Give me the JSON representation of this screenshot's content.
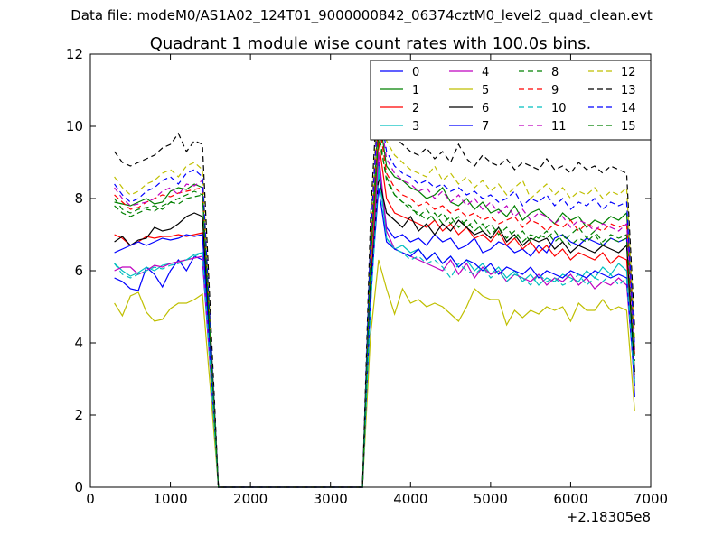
{
  "figure": {
    "suptitle": "Data file: modeM0/AS1A02_124T01_9000000842_06374cztM0_level2_quad_clean.evt"
  },
  "chart_data": {
    "type": "line",
    "title": "Quadrant 1 module wise count rates with 100.0s bins.",
    "xlabel": "",
    "ylabel": "",
    "x_offset_label": "+2.18305e8",
    "xlim": [
      0,
      7000
    ],
    "ylim": [
      0,
      12
    ],
    "xticks": [
      0,
      1000,
      2000,
      3000,
      4000,
      5000,
      6000,
      7000
    ],
    "yticks": [
      0,
      2,
      4,
      6,
      8,
      10,
      12
    ],
    "grid": false,
    "legend": {
      "position": "upper-right",
      "columns": 4
    },
    "x_segment_1": [
      300,
      400,
      500,
      600,
      700,
      800,
      900,
      1000,
      1100,
      1200,
      1300,
      1400,
      1500,
      1600
    ],
    "x_segment_2": [
      3400,
      3500,
      3600,
      3700,
      3800,
      3900,
      4000,
      4100,
      4200,
      4300,
      4400,
      4500,
      4600,
      4700,
      4800,
      4900,
      5000,
      5100,
      5200,
      5300,
      5400,
      5500,
      5600,
      5700,
      5800,
      5900,
      6000,
      6100,
      6200,
      6300,
      6400,
      6500,
      6600,
      6700,
      6800
    ],
    "gap_x": [
      1600,
      3400
    ],
    "gap_value": 0,
    "series": [
      {
        "name": "0",
        "color": "#0000ff",
        "dash": "solid",
        "seg1": [
          5.8,
          5.7,
          5.5,
          5.45,
          6.1,
          5.9,
          5.55,
          6.0,
          6.3,
          6.0,
          6.4,
          6.3,
          3.2,
          0
        ],
        "seg2": [
          0,
          5.0,
          9.0,
          7.2,
          6.9,
          7.0,
          6.8,
          6.9,
          6.7,
          7.0,
          6.8,
          6.9,
          6.6,
          6.7,
          6.9,
          6.5,
          6.6,
          6.8,
          6.7,
          6.5,
          6.6,
          6.4,
          6.7,
          6.5,
          6.9,
          7.0,
          6.8,
          6.7,
          6.9,
          6.8,
          6.7,
          6.9,
          6.8,
          6.9,
          2.5
        ]
      },
      {
        "name": "1",
        "color": "#008000",
        "dash": "solid",
        "seg1": [
          7.9,
          7.85,
          7.8,
          7.9,
          8.0,
          7.85,
          7.9,
          8.2,
          8.3,
          8.25,
          8.4,
          8.3,
          4.2,
          0
        ],
        "seg2": [
          0,
          6.5,
          10.4,
          8.9,
          8.6,
          8.5,
          8.3,
          8.2,
          8.0,
          8.1,
          8.3,
          7.9,
          7.8,
          8.0,
          7.7,
          7.9,
          7.6,
          7.7,
          7.5,
          7.8,
          7.4,
          7.6,
          7.7,
          7.5,
          7.3,
          7.6,
          7.4,
          7.5,
          7.2,
          7.4,
          7.3,
          7.5,
          7.4,
          7.6,
          3.8
        ]
      },
      {
        "name": "2",
        "color": "#ff0000",
        "dash": "solid",
        "seg1": [
          7.0,
          6.9,
          6.7,
          6.8,
          6.95,
          6.9,
          6.95,
          6.95,
          7.0,
          6.95,
          7.0,
          7.05,
          3.5,
          0
        ],
        "seg2": [
          0,
          5.6,
          9.6,
          8.0,
          7.6,
          7.5,
          7.4,
          7.3,
          7.2,
          7.4,
          7.1,
          7.3,
          7.0,
          7.2,
          6.9,
          7.0,
          6.8,
          7.1,
          6.7,
          6.9,
          6.6,
          6.8,
          6.5,
          6.7,
          6.4,
          6.6,
          6.3,
          6.5,
          6.4,
          6.3,
          6.5,
          6.2,
          6.4,
          6.3,
          3.1
        ]
      },
      {
        "name": "3",
        "color": "#00bfbf",
        "dash": "solid",
        "seg1": [
          6.2,
          6.0,
          5.85,
          5.95,
          6.1,
          6.0,
          6.15,
          6.2,
          6.25,
          6.3,
          6.45,
          6.5,
          3.3,
          0
        ],
        "seg2": [
          0,
          5.1,
          8.9,
          6.9,
          6.6,
          6.7,
          6.5,
          6.6,
          6.3,
          6.5,
          6.2,
          6.4,
          6.1,
          6.3,
          6.0,
          6.2,
          5.9,
          6.1,
          5.8,
          6.0,
          5.7,
          5.9,
          5.6,
          5.8,
          5.7,
          5.9,
          5.8,
          5.7,
          6.0,
          5.8,
          6.1,
          5.9,
          6.2,
          6.0,
          3.0
        ]
      },
      {
        "name": "4",
        "color": "#bf00bf",
        "dash": "solid",
        "seg1": [
          6.0,
          6.1,
          6.1,
          5.9,
          6.0,
          6.15,
          6.1,
          6.2,
          6.25,
          6.3,
          6.35,
          6.4,
          3.3,
          0
        ],
        "seg2": [
          0,
          5.3,
          9.3,
          7.1,
          6.6,
          6.5,
          6.4,
          6.3,
          6.2,
          6.1,
          6.0,
          6.3,
          5.9,
          6.2,
          5.8,
          6.1,
          5.9,
          6.0,
          5.7,
          5.9,
          5.8,
          5.7,
          5.9,
          5.6,
          5.8,
          5.7,
          5.9,
          5.6,
          5.8,
          5.5,
          5.7,
          5.6,
          5.8,
          5.6,
          2.9
        ]
      },
      {
        "name": "5",
        "color": "#bfbf00",
        "dash": "solid",
        "seg1": [
          5.1,
          4.75,
          5.3,
          5.4,
          4.85,
          4.6,
          4.65,
          4.95,
          5.1,
          5.1,
          5.2,
          5.35,
          2.7,
          0
        ],
        "seg2": [
          0,
          4.2,
          6.3,
          5.5,
          4.8,
          5.5,
          5.1,
          5.2,
          5.0,
          5.1,
          5.0,
          4.8,
          4.6,
          5.0,
          5.5,
          5.3,
          5.2,
          5.2,
          4.5,
          4.9,
          4.7,
          4.9,
          4.8,
          5.0,
          4.9,
          5.0,
          4.6,
          5.1,
          4.9,
          4.9,
          5.2,
          4.9,
          5.0,
          4.9,
          2.1
        ]
      },
      {
        "name": "6",
        "color": "#000000",
        "dash": "solid",
        "seg1": [
          6.8,
          6.95,
          6.7,
          6.85,
          6.9,
          7.2,
          7.1,
          7.15,
          7.3,
          7.5,
          7.6,
          7.5,
          3.8,
          0
        ],
        "seg2": [
          0,
          5.5,
          8.6,
          7.6,
          7.4,
          7.2,
          7.5,
          7.1,
          7.3,
          7.0,
          7.3,
          7.1,
          7.4,
          7.2,
          7.0,
          7.1,
          6.9,
          7.2,
          6.8,
          7.0,
          6.7,
          6.9,
          6.8,
          6.9,
          6.6,
          6.8,
          6.5,
          6.7,
          6.6,
          6.5,
          6.7,
          6.6,
          6.5,
          6.7,
          3.2
        ]
      },
      {
        "name": "7",
        "color": "#0000ff",
        "dash": "solid",
        "seg1": [
          6.5,
          6.6,
          6.7,
          6.8,
          6.7,
          6.8,
          6.9,
          6.85,
          6.9,
          7.0,
          6.95,
          7.0,
          3.5,
          0
        ],
        "seg2": [
          0,
          5.3,
          8.3,
          6.8,
          6.6,
          6.5,
          6.4,
          6.6,
          6.3,
          6.5,
          6.2,
          6.4,
          6.1,
          6.3,
          6.2,
          6.0,
          6.2,
          5.9,
          6.1,
          6.0,
          5.9,
          6.1,
          5.8,
          6.0,
          5.9,
          5.8,
          6.0,
          5.9,
          5.8,
          6.0,
          5.9,
          5.8,
          5.9,
          5.8,
          2.8
        ]
      },
      {
        "name": "8",
        "color": "#008000",
        "dash": "dashed",
        "seg1": [
          8.0,
          7.7,
          7.6,
          7.7,
          7.75,
          7.8,
          7.7,
          7.9,
          8.0,
          8.1,
          8.2,
          8.1,
          4.1,
          0
        ],
        "seg2": [
          0,
          6.3,
          9.7,
          8.6,
          8.1,
          7.9,
          7.8,
          7.5,
          7.7,
          7.4,
          7.6,
          7.3,
          7.5,
          7.2,
          7.4,
          7.1,
          7.3,
          7.0,
          7.2,
          6.9,
          7.1,
          6.8,
          7.0,
          6.9,
          7.1,
          6.8,
          7.0,
          7.2,
          6.9,
          7.1,
          6.8,
          7.0,
          6.9,
          7.0,
          3.6
        ]
      },
      {
        "name": "9",
        "color": "#ff0000",
        "dash": "dashed",
        "seg1": [
          8.1,
          7.9,
          7.7,
          7.75,
          7.9,
          8.0,
          8.1,
          8.05,
          8.15,
          8.2,
          8.25,
          8.3,
          4.2,
          0
        ],
        "seg2": [
          0,
          6.6,
          10.2,
          8.7,
          8.3,
          8.1,
          8.0,
          7.8,
          7.9,
          7.7,
          7.8,
          7.6,
          7.7,
          7.5,
          7.6,
          7.4,
          7.5,
          7.3,
          7.4,
          7.5,
          7.2,
          7.4,
          7.3,
          7.1,
          7.3,
          7.2,
          7.4,
          7.1,
          7.3,
          7.2,
          7.1,
          7.3,
          7.2,
          7.3,
          3.7
        ]
      },
      {
        "name": "10",
        "color": "#00bfbf",
        "dash": "dashed",
        "seg1": [
          6.2,
          5.9,
          5.8,
          5.9,
          6.0,
          6.1,
          6.05,
          6.15,
          6.2,
          6.3,
          6.4,
          6.5,
          3.3,
          0
        ],
        "seg2": [
          0,
          5.0,
          8.7,
          6.9,
          6.6,
          6.5,
          6.3,
          6.4,
          6.2,
          6.3,
          6.1,
          5.8,
          6.2,
          6.0,
          5.9,
          6.1,
          5.8,
          6.0,
          5.7,
          5.9,
          5.8,
          5.6,
          5.9,
          5.7,
          5.8,
          5.6,
          5.7,
          5.9,
          5.6,
          5.8,
          5.7,
          5.9,
          5.6,
          5.8,
          2.9
        ]
      },
      {
        "name": "11",
        "color": "#bf00bf",
        "dash": "dashed",
        "seg1": [
          8.3,
          8.0,
          7.8,
          7.85,
          7.9,
          8.0,
          8.2,
          8.3,
          8.1,
          8.4,
          8.35,
          8.5,
          4.3,
          0
        ],
        "seg2": [
          0,
          6.8,
          10.6,
          9.1,
          8.7,
          8.5,
          8.4,
          8.2,
          8.3,
          8.0,
          8.2,
          7.9,
          8.1,
          7.8,
          8.0,
          7.7,
          7.9,
          7.6,
          7.8,
          7.5,
          7.7,
          7.4,
          7.6,
          7.5,
          7.3,
          7.5,
          7.2,
          7.4,
          7.3,
          7.1,
          7.3,
          7.2,
          7.1,
          7.3,
          3.8
        ]
      },
      {
        "name": "12",
        "color": "#bfbf00",
        "dash": "dashed",
        "seg1": [
          8.6,
          8.3,
          8.1,
          8.2,
          8.4,
          8.5,
          8.7,
          8.8,
          8.6,
          8.9,
          9.0,
          8.8,
          4.5,
          0
        ],
        "seg2": [
          0,
          7.1,
          11.2,
          9.6,
          9.2,
          9.0,
          8.8,
          8.7,
          8.6,
          8.9,
          8.5,
          8.7,
          8.4,
          8.6,
          8.3,
          8.5,
          8.2,
          8.4,
          8.1,
          8.3,
          8.5,
          8.0,
          8.2,
          8.4,
          8.1,
          8.3,
          8.0,
          8.2,
          8.1,
          8.3,
          8.0,
          8.2,
          8.1,
          8.3,
          4.1
        ]
      },
      {
        "name": "13",
        "color": "#000000",
        "dash": "dashed",
        "seg1": [
          9.3,
          9.0,
          8.9,
          9.0,
          9.1,
          9.2,
          9.4,
          9.5,
          9.8,
          9.3,
          9.6,
          9.5,
          4.8,
          0
        ],
        "seg2": [
          0,
          7.5,
          11.5,
          10.1,
          9.7,
          9.5,
          9.3,
          9.2,
          9.4,
          9.1,
          9.3,
          9.0,
          9.5,
          9.1,
          8.9,
          9.2,
          9.0,
          8.9,
          9.1,
          8.8,
          9.0,
          8.9,
          8.8,
          9.1,
          8.8,
          8.9,
          8.7,
          9.0,
          8.8,
          8.9,
          8.7,
          8.9,
          8.8,
          8.7,
          4.4
        ]
      },
      {
        "name": "14",
        "color": "#0000ff",
        "dash": "dashed",
        "seg1": [
          8.4,
          8.1,
          7.9,
          8.0,
          8.2,
          8.3,
          8.5,
          8.6,
          8.4,
          8.7,
          8.8,
          8.6,
          4.3,
          0
        ],
        "seg2": [
          0,
          6.9,
          10.8,
          9.3,
          8.9,
          8.7,
          8.6,
          8.4,
          8.5,
          8.3,
          8.4,
          8.2,
          8.3,
          8.1,
          8.2,
          8.0,
          8.1,
          7.9,
          8.0,
          8.2,
          7.8,
          8.0,
          7.9,
          8.1,
          7.8,
          8.0,
          7.7,
          7.9,
          7.8,
          8.0,
          7.7,
          7.9,
          7.8,
          7.9,
          3.9
        ]
      },
      {
        "name": "15",
        "color": "#008000",
        "dash": "dashed",
        "seg1": [
          7.8,
          7.6,
          7.5,
          7.6,
          7.7,
          7.65,
          7.8,
          7.9,
          7.85,
          8.0,
          8.05,
          8.1,
          4.0,
          0
        ],
        "seg2": [
          0,
          6.2,
          9.9,
          8.5,
          8.1,
          7.9,
          7.7,
          7.6,
          7.4,
          7.6,
          7.3,
          7.5,
          7.2,
          7.4,
          7.1,
          7.3,
          7.0,
          7.2,
          6.9,
          7.1,
          6.8,
          7.0,
          6.9,
          7.1,
          6.8,
          7.0,
          6.7,
          6.9,
          6.8,
          7.0,
          6.7,
          6.9,
          6.8,
          6.9,
          3.5
        ]
      }
    ]
  }
}
